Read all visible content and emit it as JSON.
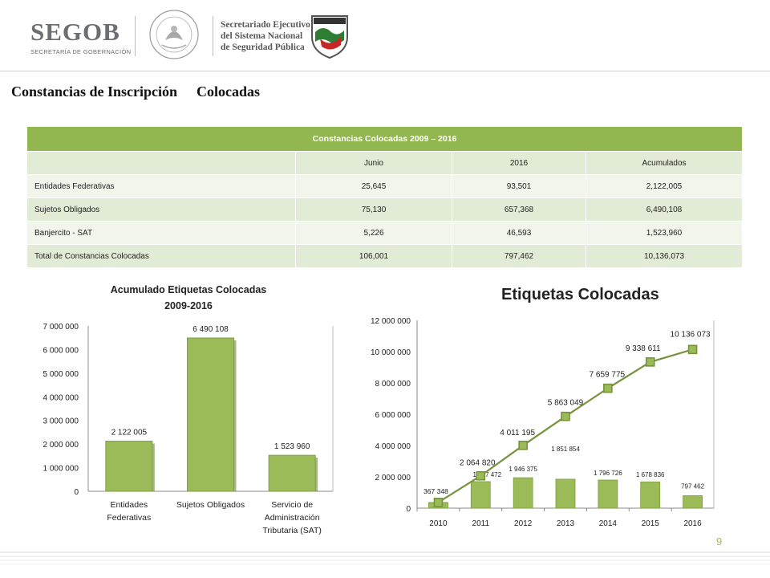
{
  "header": {
    "segob": "SEGOB",
    "segob_sub": "SECRETARÍA DE GOBERNACIÓN",
    "sesnsp_line1": "Secretariado Ejecutivo",
    "sesnsp_line2": "del Sistema Nacional",
    "sesnsp_line3": "de Seguridad Pública"
  },
  "page": {
    "title_a": "Constancias de Inscripción",
    "title_b": "Colocadas",
    "page_number": "9"
  },
  "table": {
    "caption": "Constancias Colocadas  2009 – 2016",
    "columns": [
      "",
      "Junio",
      "2016",
      "Acumulados"
    ],
    "rows": [
      [
        "Entidades Federativas",
        "25,645",
        "93,501",
        "2,122,005"
      ],
      [
        "Sujetos Obligados",
        "75,130",
        "657,368",
        "6,490,108"
      ],
      [
        "Banjercito - SAT",
        "5,226",
        "46,593",
        "1,523,960"
      ],
      [
        "Total de Constancias Colocadas",
        "106,001",
        "797,462",
        "10,136,073"
      ]
    ]
  },
  "chart_data": [
    {
      "type": "bar",
      "title": "Acumulado Etiquetas Colocadas",
      "subtitle": "2009-2016",
      "categories": [
        [
          "Entidades",
          "Federativas"
        ],
        [
          "Sujetos Obligados"
        ],
        [
          "Servicio de",
          "Administración",
          "Tributaria (SAT)"
        ]
      ],
      "values": [
        2122005,
        6490108,
        1523960
      ],
      "value_labels": [
        "2 122 005",
        "6 490 108",
        "1 523 960"
      ],
      "yticks": [
        0,
        1000000,
        2000000,
        3000000,
        4000000,
        5000000,
        6000000,
        7000000
      ],
      "ytick_labels": [
        "0",
        "1 000 000",
        "2 000 000",
        "3 000 000",
        "4 000 000",
        "5 000 000",
        "6 000 000",
        "7 000 000"
      ],
      "ylim": [
        0,
        7000000
      ],
      "color": "#9bbb59"
    },
    {
      "type": "line",
      "title": "Etiquetas Colocadas",
      "categories": [
        "2010",
        "2011",
        "2012",
        "2013",
        "2014",
        "2015",
        "2016"
      ],
      "series": [
        {
          "values": [
            367348,
            2064820,
            4011195,
            5863049,
            7659775,
            9338611,
            10136073
          ],
          "labels": [
            "367 348",
            "2 064 820",
            "4 011 195",
            "5 863 049",
            "7 659 775",
            "9 338 611",
            "10 136 073"
          ],
          "color": "#77933c"
        },
        {
          "values": [
            367348,
            1697472,
            1946375,
            1851854,
            1796726,
            1678836,
            797462
          ],
          "labels": [
            "",
            "1 697 472",
            "1 946 375",
            "1 851 854",
            "1 796 726",
            "1 678 836",
            "797 462"
          ],
          "color": "#9bbb59"
        }
      ],
      "yticks": [
        0,
        2000000,
        4000000,
        6000000,
        8000000,
        10000000,
        12000000
      ],
      "ytick_labels": [
        "0",
        "2 000 000",
        "4 000 000",
        "6 000 000",
        "8 000 000",
        "10 000 000",
        "12 000 000"
      ],
      "ylim": [
        0,
        12000000
      ]
    }
  ]
}
